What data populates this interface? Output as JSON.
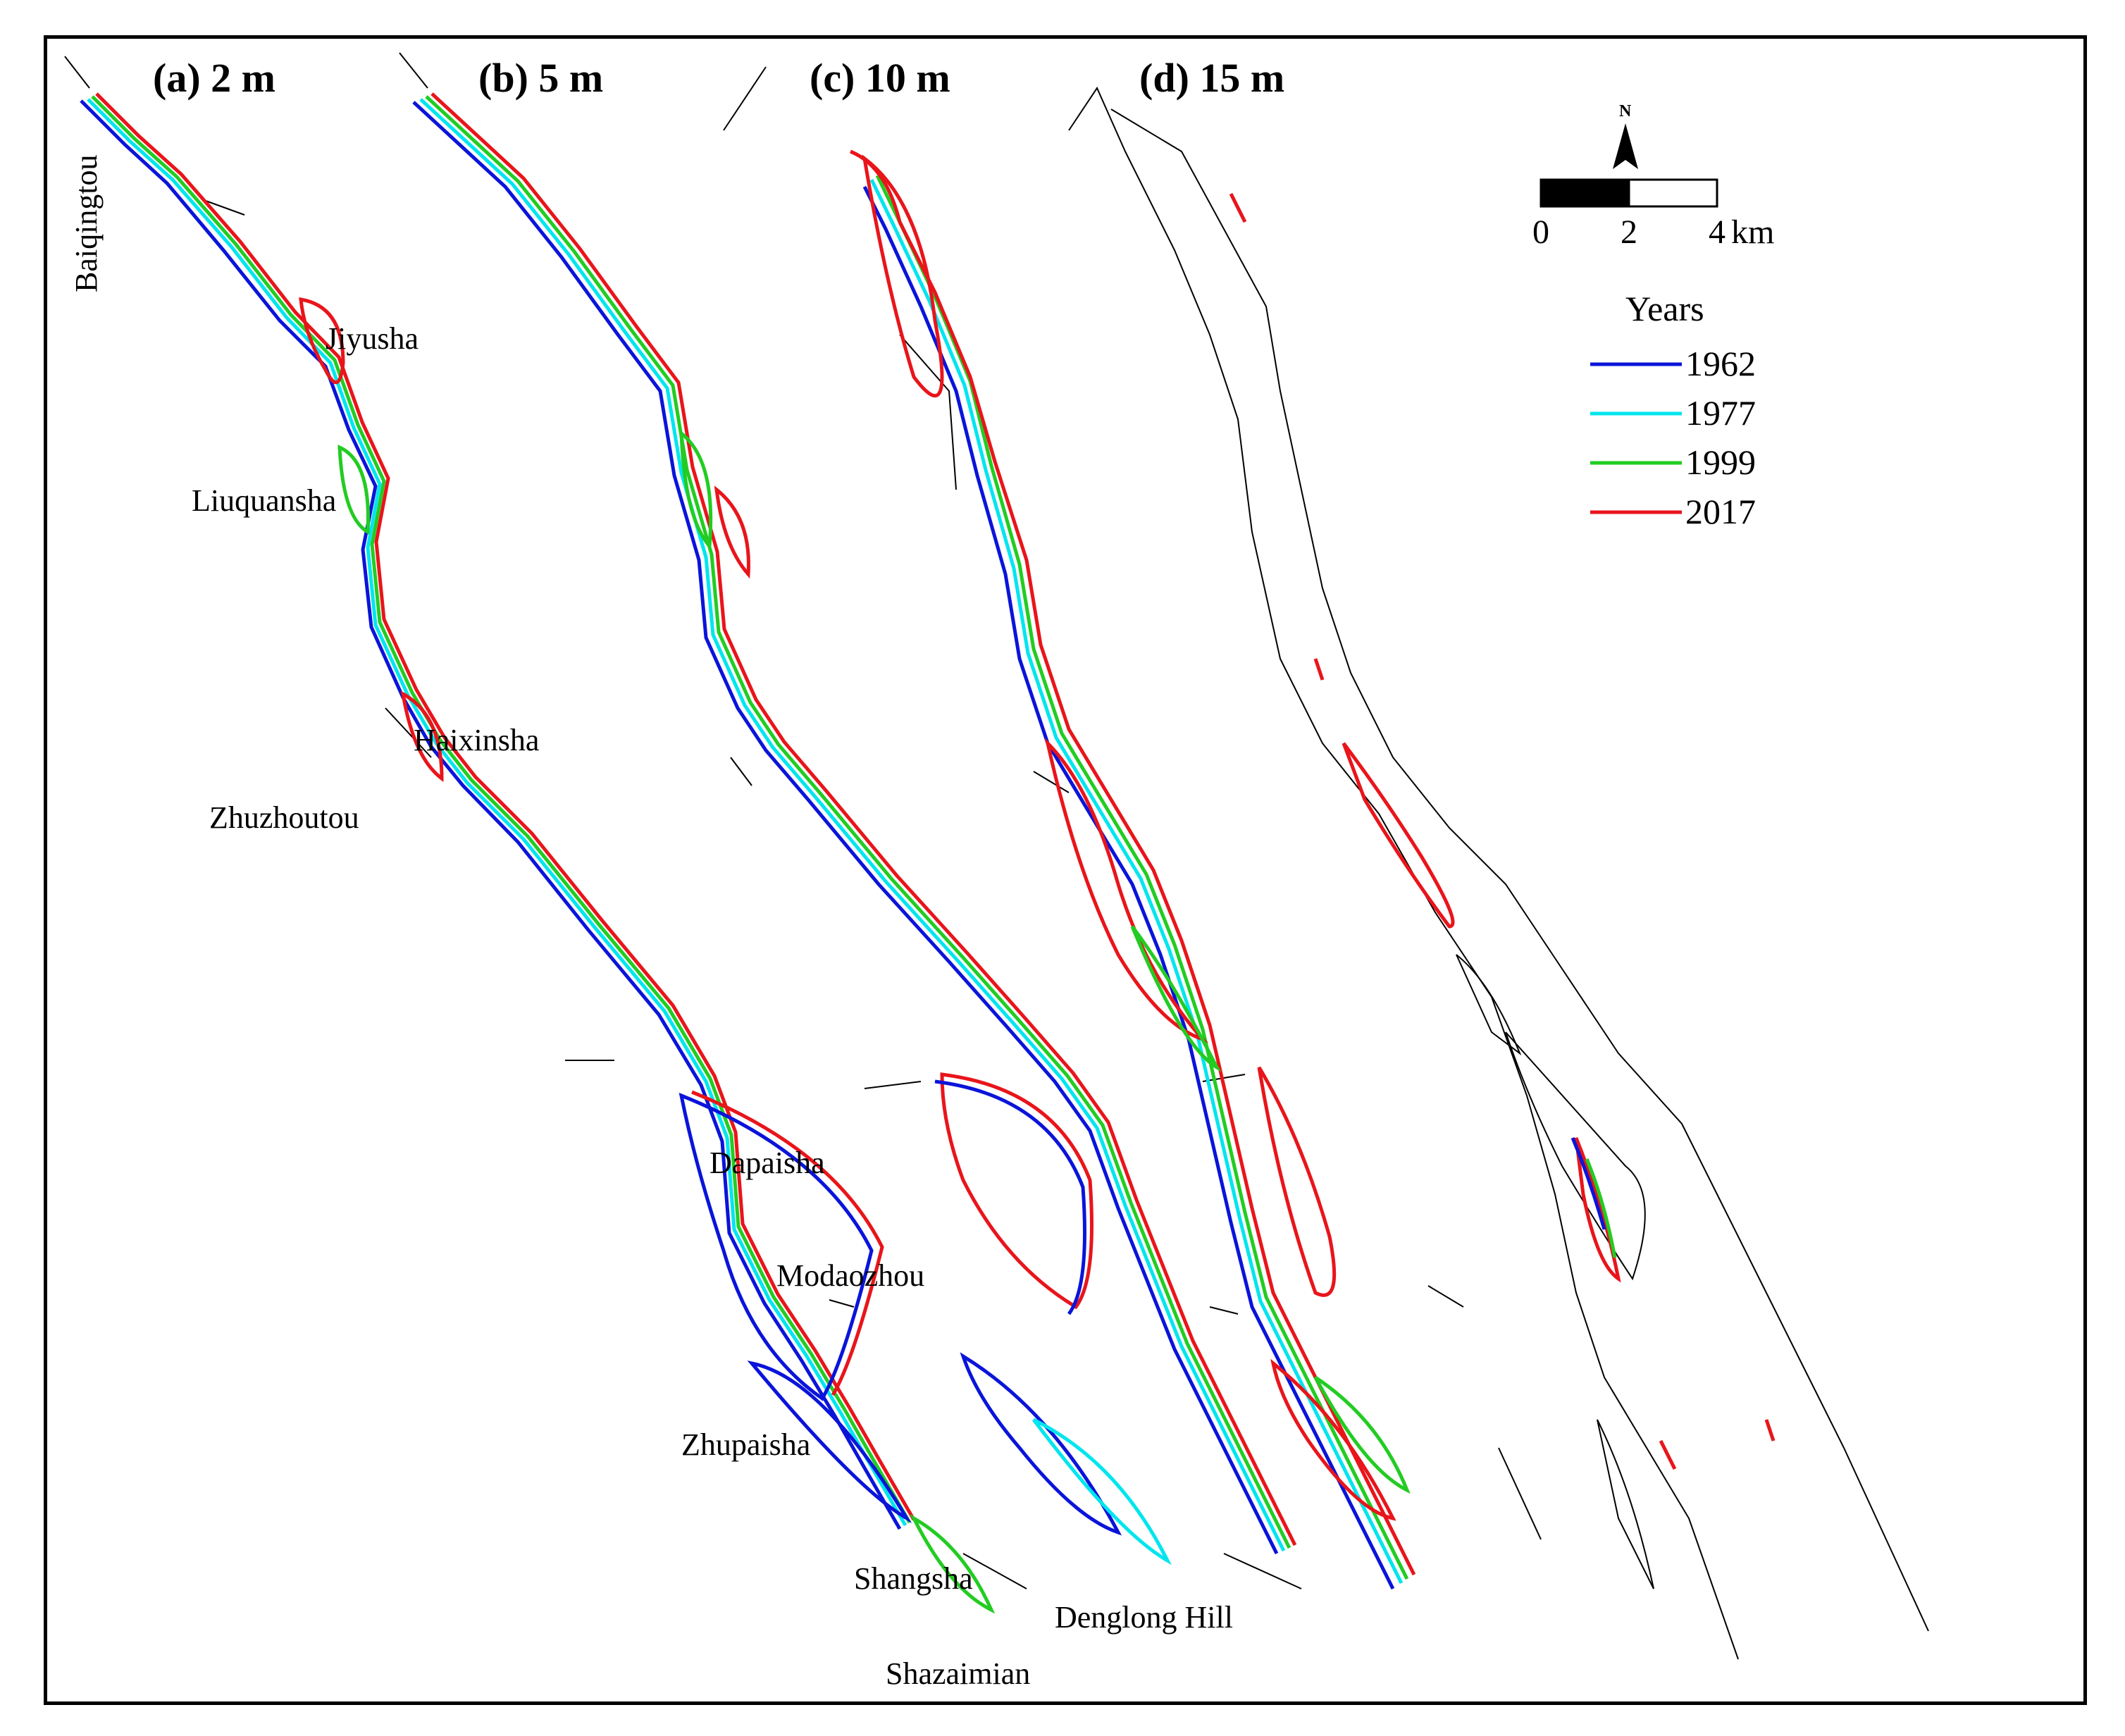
{
  "panels": [
    {
      "title": "(a) 2 m",
      "depth": 2
    },
    {
      "title": "(b) 5 m",
      "depth": 5
    },
    {
      "title": "(c) 10 m",
      "depth": 10
    },
    {
      "title": "(d) 15 m",
      "depth": 15
    }
  ],
  "places": {
    "baiqingtou": "Baiqingtou",
    "jiyusha": "Jiyusha",
    "liuquansha": "Liuquansha",
    "haixinsha": "Haixinsha",
    "zhuzhoutou": "Zhuzhoutou",
    "dapaisha": "Dapaisha",
    "modaozhou": "Modaozhou",
    "zhupaisha": "Zhupaisha",
    "shangsha": "Shangsha",
    "denglong_hill": "Denglong Hill",
    "shazaimian": "Shazaimian"
  },
  "north_arrow": {
    "label": "N",
    "icon": "north-arrow-icon"
  },
  "scale_bar": {
    "ticks": [
      "0",
      "2",
      "4"
    ],
    "unit": "km"
  },
  "legend": {
    "title": "Years",
    "items": [
      {
        "year": "1962",
        "color": "#0a14d9"
      },
      {
        "year": "1977",
        "color": "#00e5ee"
      },
      {
        "year": "1999",
        "color": "#22cc22"
      },
      {
        "year": "2017",
        "color": "#e8151b"
      }
    ]
  }
}
